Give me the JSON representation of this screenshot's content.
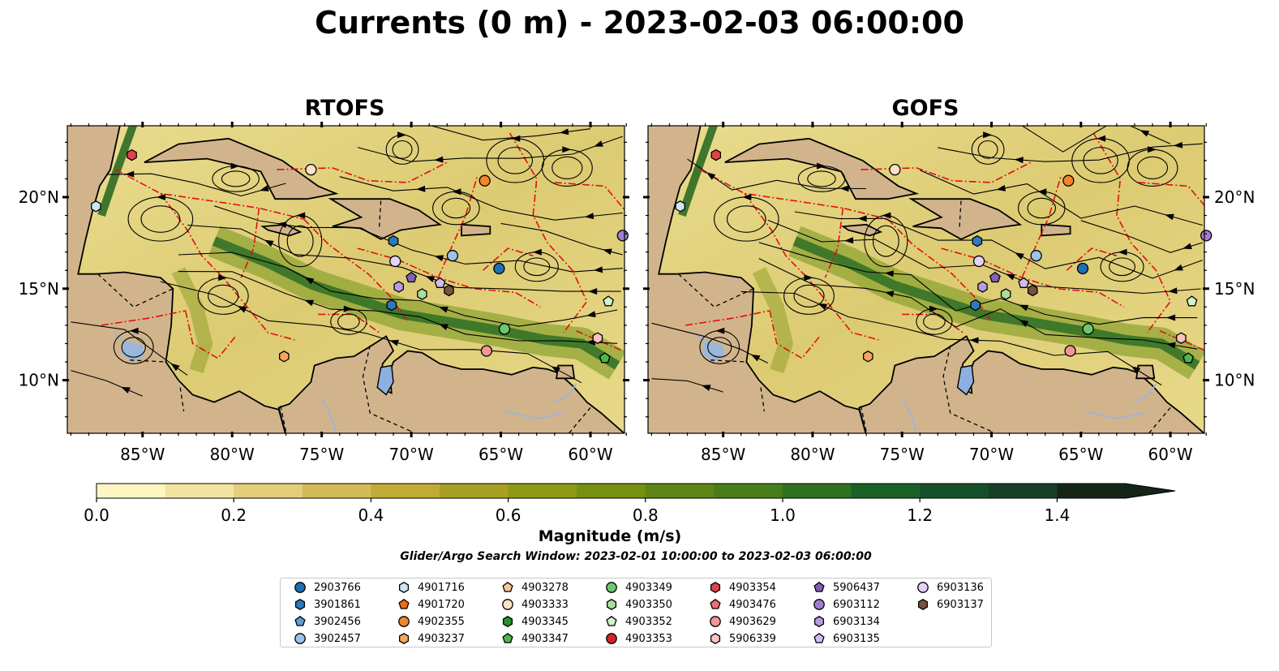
{
  "title": "Currents (0 m) - 2023-02-03 06:00:00",
  "panels": [
    {
      "title": "RTOFS"
    },
    {
      "title": "GOFS"
    }
  ],
  "lon_ticks": [
    "85°W",
    "80°W",
    "75°W",
    "70°W",
    "65°W",
    "60°W"
  ],
  "lat_ticks": [
    "20°N",
    "15°N",
    "10°N"
  ],
  "colorbar": {
    "label": "Magnitude (m/s)",
    "ticks": [
      "0.0",
      "0.2",
      "0.4",
      "0.6",
      "0.8",
      "1.0",
      "1.2",
      "1.4"
    ],
    "range": [
      0.0,
      1.6
    ],
    "colors": [
      "#fdf6c3",
      "#f2e4a0",
      "#e3cf7a",
      "#d3bb55",
      "#c0ab36",
      "#a8a024",
      "#8e9a14",
      "#76900f",
      "#5e8514",
      "#477d1a",
      "#2e711f",
      "#1a6128",
      "#14512a",
      "#173f26",
      "#1a2f1e",
      "#142518"
    ]
  },
  "search_window": "Glider/Argo Search Window: 2023-02-01 10:00:00 to 2023-02-03 06:00:00",
  "legend": [
    {
      "id": "2903766",
      "shape": "circle",
      "color": "#1f6fb4"
    },
    {
      "id": "3901861",
      "shape": "hexagon",
      "color": "#2b7bbd"
    },
    {
      "id": "3902456",
      "shape": "pentagon",
      "color": "#5a9fd6"
    },
    {
      "id": "3902457",
      "shape": "circle",
      "color": "#9ac4ea"
    },
    {
      "id": "4901716",
      "shape": "hexagon",
      "color": "#cbe6f7"
    },
    {
      "id": "4901720",
      "shape": "pentagon",
      "color": "#f06d0c"
    },
    {
      "id": "4902355",
      "shape": "circle",
      "color": "#f3862d"
    },
    {
      "id": "4903237",
      "shape": "hexagon",
      "color": "#f7a55d"
    },
    {
      "id": "4903278",
      "shape": "pentagon",
      "color": "#fac896"
    },
    {
      "id": "4903333",
      "shape": "circle",
      "color": "#fde1c4"
    },
    {
      "id": "4903345",
      "shape": "hexagon",
      "color": "#27942a"
    },
    {
      "id": "4903347",
      "shape": "pentagon",
      "color": "#4cb84a"
    },
    {
      "id": "4903349",
      "shape": "circle",
      "color": "#6fc66d"
    },
    {
      "id": "4903350",
      "shape": "hexagon",
      "color": "#a6df9c"
    },
    {
      "id": "4903352",
      "shape": "pentagon",
      "color": "#d2f3cc"
    },
    {
      "id": "4903353",
      "shape": "circle",
      "color": "#d52324"
    },
    {
      "id": "4903354",
      "shape": "hexagon",
      "color": "#e2434a"
    },
    {
      "id": "4903476",
      "shape": "pentagon",
      "color": "#ec6e74"
    },
    {
      "id": "4903629",
      "shape": "circle",
      "color": "#f29597"
    },
    {
      "id": "5906339",
      "shape": "hexagon",
      "color": "#fbc2c1"
    },
    {
      "id": "5906437",
      "shape": "pentagon",
      "color": "#8260b8"
    },
    {
      "id": "6903112",
      "shape": "circle",
      "color": "#a07ed2"
    },
    {
      "id": "6903134",
      "shape": "hexagon",
      "color": "#b79ce0"
    },
    {
      "id": "6903135",
      "shape": "pentagon",
      "color": "#d1bdec"
    },
    {
      "id": "6903136",
      "shape": "circle",
      "color": "#e3d2f7"
    },
    {
      "id": "6903137",
      "shape": "hexagon",
      "color": "#7a5040"
    }
  ],
  "floats": [
    {
      "id": "4903354",
      "lon": -85.6,
      "lat": 22.3
    },
    {
      "id": "4901716",
      "lon": -87.6,
      "lat": 19.5
    },
    {
      "id": "4903333",
      "lon": -75.6,
      "lat": 21.5
    },
    {
      "id": "4902355",
      "lon": -65.9,
      "lat": 20.9
    },
    {
      "id": "3901861",
      "lon": -71.0,
      "lat": 17.6
    },
    {
      "id": "3902457",
      "lon": -67.7,
      "lat": 16.8
    },
    {
      "id": "6903136",
      "lon": -70.9,
      "lat": 16.5
    },
    {
      "id": "2903766",
      "lon": -65.1,
      "lat": 16.1
    },
    {
      "id": "6903112",
      "lon": -58.2,
      "lat": 17.9
    },
    {
      "id": "5906437",
      "lon": -70.0,
      "lat": 15.6
    },
    {
      "id": "6903134",
      "lon": -70.7,
      "lat": 15.1
    },
    {
      "id": "6903135",
      "lon": -68.4,
      "lat": 15.3
    },
    {
      "id": "6903137",
      "lon": -67.9,
      "lat": 14.9
    },
    {
      "id": "4903350",
      "lon": -69.4,
      "lat": 14.7
    },
    {
      "id": "4903352",
      "lon": -59.0,
      "lat": 14.3
    },
    {
      "id": "3901861",
      "lon": -71.1,
      "lat": 14.1
    },
    {
      "id": "4903349",
      "lon": -64.8,
      "lat": 12.8
    },
    {
      "id": "5906339",
      "lon": -59.6,
      "lat": 12.3
    },
    {
      "id": "4903629",
      "lon": -65.8,
      "lat": 11.6
    },
    {
      "id": "4903237",
      "lon": -77.1,
      "lat": 11.3
    },
    {
      "id": "4903347",
      "lon": -59.2,
      "lat": 11.2
    }
  ]
}
